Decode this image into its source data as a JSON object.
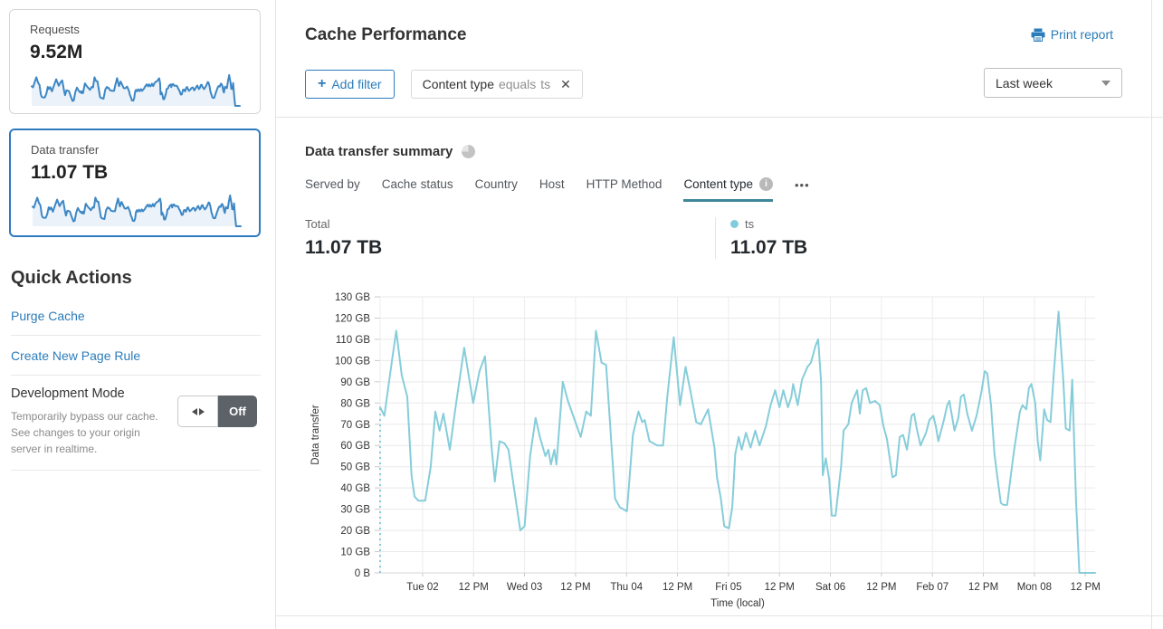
{
  "colors": {
    "accent_blue": "#2b7cba",
    "selected_border": "#2f7bbf",
    "spark_stroke": "#3d87c5",
    "spark_fill": "#ebf2f9",
    "line_blue": "#86cdda",
    "legend_dot": "#82cddd",
    "tab_underline": "#3d8799"
  },
  "sidebar": {
    "cards": [
      {
        "label": "Requests",
        "value": "9.52M"
      },
      {
        "label": "Data transfer",
        "value": "11.07 TB",
        "selected": true
      }
    ],
    "quick_actions": {
      "title": "Quick Actions",
      "links": [
        "Purge Cache",
        "Create New Page Rule"
      ],
      "dev_mode": {
        "title": "Development Mode",
        "description": "Temporarily bypass our cache. See changes to your origin server in realtime.",
        "toggle_label": "Off"
      }
    }
  },
  "header": {
    "title": "Cache Performance",
    "print_label": "Print report",
    "add_filter": {
      "icon": "+",
      "label": "Add filter"
    },
    "filter_chip": {
      "field": "Content type",
      "operator": "equals",
      "value": "ts",
      "close": "✕"
    },
    "time_range": "Last week"
  },
  "summary": {
    "title": "Data transfer summary",
    "tabs": [
      {
        "label": "Served by"
      },
      {
        "label": "Cache status"
      },
      {
        "label": "Country"
      },
      {
        "label": "Host"
      },
      {
        "label": "HTTP Method"
      },
      {
        "label": "Content type",
        "active": true,
        "has_info": true
      }
    ],
    "more_label": "•••",
    "total_label": "Total",
    "total_value": "11.07 TB",
    "legend": {
      "name": "ts",
      "value": "11.07 TB"
    }
  },
  "chart_data": {
    "type": "line",
    "title": "Data transfer summary",
    "xlabel": "Time (local)",
    "ylabel": "Data transfer",
    "unit": "GB",
    "ylim": [
      0,
      130
    ],
    "ytick_step": 10,
    "ytick_labels": [
      "0 B",
      "10 GB",
      "20 GB",
      "30 GB",
      "40 GB",
      "50 GB",
      "60 GB",
      "70 GB",
      "80 GB",
      "90 GB",
      "100 GB",
      "110 GB",
      "120 GB",
      "130 GB"
    ],
    "xtick_labels": [
      "Tue 02",
      "12 PM",
      "Wed 03",
      "12 PM",
      "Thu 04",
      "12 PM",
      "Fri 05",
      "12 PM",
      "Sat 06",
      "12 PM",
      "Feb 07",
      "12 PM",
      "Mon 08",
      "12 PM"
    ],
    "xtick_hours": [
      10,
      22,
      34,
      46,
      58,
      70,
      82,
      94,
      106,
      118,
      130,
      142,
      154,
      166
    ],
    "x_domain_hours": [
      0,
      168.3
    ],
    "grid": true,
    "leading_dashed_to_zero": true,
    "series": [
      {
        "name": "ts",
        "color": "#86cdda",
        "points": [
          [
            0,
            78
          ],
          [
            1,
            74
          ],
          [
            2.8,
            100
          ],
          [
            3.8,
            114
          ],
          [
            5.1,
            93
          ],
          [
            6.4,
            83
          ],
          [
            7.4,
            46
          ],
          [
            8.1,
            36
          ],
          [
            9,
            34
          ],
          [
            10.6,
            34
          ],
          [
            11.9,
            50
          ],
          [
            13,
            76
          ],
          [
            14,
            67
          ],
          [
            14.9,
            75
          ],
          [
            16.4,
            58
          ],
          [
            17.9,
            80
          ],
          [
            19.8,
            106
          ],
          [
            21.9,
            80
          ],
          [
            23.4,
            95
          ],
          [
            24.7,
            102
          ],
          [
            26.2,
            60
          ],
          [
            27,
            43
          ],
          [
            28.1,
            62
          ],
          [
            29.3,
            61
          ],
          [
            30.2,
            58
          ],
          [
            31.5,
            40
          ],
          [
            33,
            20
          ],
          [
            34,
            22
          ],
          [
            35.3,
            55
          ],
          [
            36.6,
            73
          ],
          [
            37.6,
            64
          ],
          [
            38.9,
            55
          ],
          [
            39.6,
            58
          ],
          [
            40.2,
            51
          ],
          [
            41,
            58
          ],
          [
            41.5,
            51
          ],
          [
            43,
            90
          ],
          [
            44.2,
            81
          ],
          [
            47.2,
            64
          ],
          [
            48.5,
            76
          ],
          [
            49.6,
            74
          ],
          [
            50.8,
            114
          ],
          [
            52.1,
            99
          ],
          [
            53.2,
            98
          ],
          [
            55.3,
            35
          ],
          [
            56.4,
            31
          ],
          [
            58.1,
            29
          ],
          [
            59.5,
            65
          ],
          [
            60.8,
            76
          ],
          [
            61.7,
            71
          ],
          [
            62.3,
            72
          ],
          [
            63.4,
            62
          ],
          [
            65.3,
            60
          ],
          [
            66.6,
            60
          ],
          [
            67.6,
            83
          ],
          [
            69.1,
            111
          ],
          [
            70.6,
            79
          ],
          [
            71.9,
            97
          ],
          [
            73.2,
            84
          ],
          [
            74.4,
            71
          ],
          [
            75.5,
            70
          ],
          [
            77.2,
            77
          ],
          [
            78.7,
            59
          ],
          [
            79.3,
            45
          ],
          [
            80.2,
            35
          ],
          [
            81,
            22
          ],
          [
            82.1,
            21
          ],
          [
            82.9,
            31
          ],
          [
            83.6,
            56
          ],
          [
            84.4,
            64
          ],
          [
            85.1,
            58
          ],
          [
            86.1,
            66
          ],
          [
            87.2,
            59
          ],
          [
            88.3,
            67
          ],
          [
            89.3,
            60
          ],
          [
            90.8,
            69
          ],
          [
            91.9,
            79
          ],
          [
            93,
            86
          ],
          [
            94,
            78
          ],
          [
            94.9,
            86
          ],
          [
            96,
            78
          ],
          [
            96.8,
            83
          ],
          [
            97.2,
            89
          ],
          [
            98.3,
            79
          ],
          [
            99.3,
            91
          ],
          [
            100.6,
            97
          ],
          [
            101.4,
            99
          ],
          [
            102.5,
            107
          ],
          [
            103.1,
            110
          ],
          [
            103.8,
            90
          ],
          [
            104.2,
            46
          ],
          [
            104.9,
            54
          ],
          [
            105.7,
            44
          ],
          [
            106.3,
            27
          ],
          [
            107.2,
            27
          ],
          [
            108.5,
            50
          ],
          [
            109.1,
            67
          ],
          [
            110.2,
            70
          ],
          [
            111,
            80
          ],
          [
            112.3,
            86
          ],
          [
            112.9,
            75
          ],
          [
            113.6,
            86
          ],
          [
            114.4,
            87
          ],
          [
            115.3,
            80
          ],
          [
            116.5,
            81
          ],
          [
            117.6,
            79
          ],
          [
            118.5,
            69
          ],
          [
            119.3,
            63
          ],
          [
            120.6,
            45
          ],
          [
            121.4,
            46
          ],
          [
            122.3,
            64
          ],
          [
            123.1,
            65
          ],
          [
            124,
            58
          ],
          [
            125.1,
            74
          ],
          [
            125.7,
            75
          ],
          [
            126.3,
            68
          ],
          [
            127.2,
            60
          ],
          [
            128.5,
            66
          ],
          [
            129.3,
            72
          ],
          [
            130.2,
            74
          ],
          [
            130.8,
            69
          ],
          [
            131.4,
            62
          ],
          [
            132.7,
            72
          ],
          [
            133.5,
            79
          ],
          [
            134,
            81
          ],
          [
            134.6,
            74
          ],
          [
            135.2,
            67
          ],
          [
            136.1,
            73
          ],
          [
            136.7,
            83
          ],
          [
            137.4,
            84
          ],
          [
            138.2,
            75
          ],
          [
            139.3,
            67
          ],
          [
            140.4,
            74
          ],
          [
            141,
            80
          ],
          [
            141.6,
            86
          ],
          [
            142.3,
            95
          ],
          [
            142.9,
            94
          ],
          [
            143.8,
            79
          ],
          [
            144.6,
            56
          ],
          [
            145.3,
            45
          ],
          [
            146.1,
            33
          ],
          [
            146.7,
            32
          ],
          [
            147.6,
            32
          ],
          [
            148.4,
            45
          ],
          [
            149.1,
            56
          ],
          [
            149.7,
            64
          ],
          [
            150.6,
            76
          ],
          [
            151.2,
            79
          ],
          [
            152.1,
            77
          ],
          [
            152.7,
            87
          ],
          [
            153.3,
            89
          ],
          [
            154.2,
            80
          ],
          [
            154.8,
            62
          ],
          [
            155.4,
            53
          ],
          [
            156.3,
            77
          ],
          [
            157,
            72
          ],
          [
            157.8,
            71
          ],
          [
            158.6,
            95
          ],
          [
            159.7,
            123
          ],
          [
            160.8,
            91
          ],
          [
            161.4,
            68
          ],
          [
            162.3,
            67
          ],
          [
            162.9,
            91
          ],
          [
            163.8,
            34
          ],
          [
            164.6,
            0
          ],
          [
            168.3,
            0
          ]
        ]
      }
    ]
  }
}
